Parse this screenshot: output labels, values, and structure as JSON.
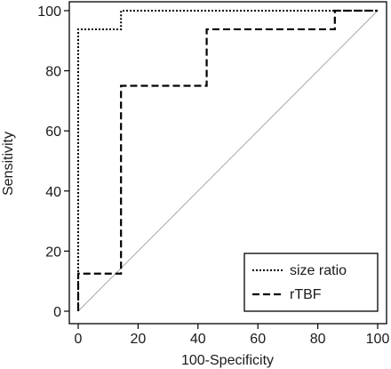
{
  "chart_data": {
    "type": "line",
    "title": "",
    "xlabel": "100-Specificity",
    "ylabel": "Sensitivity",
    "xlim": [
      0,
      100
    ],
    "ylim": [
      0,
      100
    ],
    "xticks": [
      0,
      20,
      40,
      60,
      80,
      100
    ],
    "yticks": [
      0,
      20,
      40,
      60,
      80,
      100
    ],
    "xtick_labels": [
      "0",
      "20",
      "40",
      "60",
      "80",
      "100"
    ],
    "ytick_labels": [
      "0",
      "20",
      "40",
      "60",
      "80",
      "100"
    ],
    "grid": false,
    "legend_position": "bottom-right",
    "reference_line": {
      "x": [
        0,
        100
      ],
      "y": [
        0,
        100
      ],
      "color": "#a0a0a0"
    },
    "series": [
      {
        "name": "size ratio",
        "style": "dotted",
        "color": "#000000",
        "x": [
          0,
          0,
          14.3,
          14.3,
          100
        ],
        "y": [
          0,
          93.8,
          93.8,
          100,
          100
        ]
      },
      {
        "name": "rTBF",
        "style": "dashed",
        "color": "#000000",
        "x": [
          0,
          0,
          14.3,
          14.3,
          42.9,
          42.9,
          85.7,
          85.7,
          100
        ],
        "y": [
          0,
          12.5,
          12.5,
          75,
          75,
          93.8,
          93.8,
          100,
          100
        ]
      }
    ]
  }
}
